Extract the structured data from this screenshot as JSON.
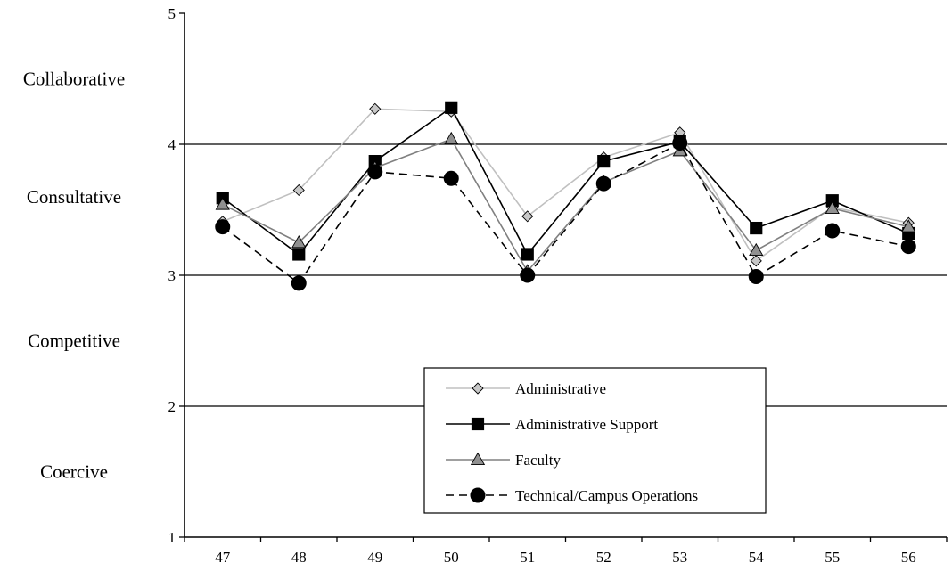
{
  "chart_data": {
    "type": "line",
    "title": "",
    "xlabel": "",
    "ylabel": "",
    "categories": [
      "47",
      "48",
      "49",
      "50",
      "51",
      "52",
      "53",
      "54",
      "55",
      "56"
    ],
    "ylim": [
      1,
      5
    ],
    "y_ticks": [
      "1",
      "2",
      "3",
      "4",
      "5"
    ],
    "y_band_labels": [
      {
        "label": "Collaborative",
        "y": 4.5
      },
      {
        "label": "Consultative",
        "y": 3.6
      },
      {
        "label": "Competitive",
        "y": 2.5
      },
      {
        "label": "Coercive",
        "y": 1.5
      }
    ],
    "grid": "horizontal lines at 2, 3, 4",
    "legend_position": "lower-center",
    "series": [
      {
        "name": "Administrative",
        "values": [
          3.41,
          3.65,
          4.27,
          4.25,
          3.45,
          3.9,
          4.09,
          3.11,
          3.52,
          3.4
        ],
        "color": "#c0c0c0",
        "marker": "diamond",
        "marker_fill": "#c8c8c8",
        "dash": "solid"
      },
      {
        "name": "Administrative Support",
        "values": [
          3.59,
          3.16,
          3.87,
          4.28,
          3.16,
          3.87,
          4.02,
          3.36,
          3.57,
          3.32
        ],
        "color": "#000000",
        "marker": "square",
        "marker_fill": "#000000",
        "dash": "solid"
      },
      {
        "name": "Faculty",
        "values": [
          3.54,
          3.25,
          3.82,
          4.04,
          3.03,
          3.71,
          3.95,
          3.19,
          3.51,
          3.37
        ],
        "color": "#808080",
        "marker": "triangle",
        "marker_fill": "#909090",
        "dash": "solid"
      },
      {
        "name": "Technical/Campus Operations",
        "values": [
          3.37,
          2.94,
          3.79,
          3.74,
          3.0,
          3.7,
          4.01,
          2.99,
          3.34,
          3.22
        ],
        "color": "#000000",
        "marker": "circle",
        "marker_fill": "#000000",
        "dash": "dashed"
      }
    ]
  }
}
